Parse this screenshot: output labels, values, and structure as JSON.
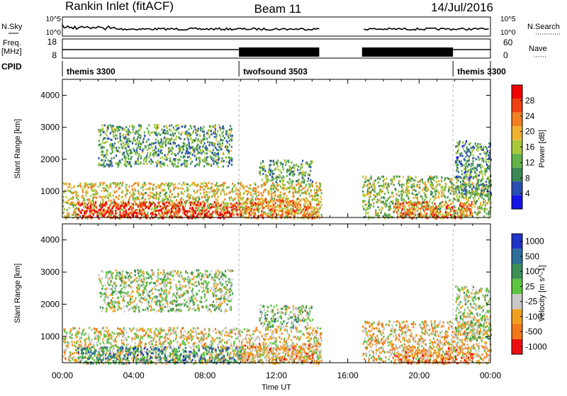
{
  "header": {
    "station": "Rankin Inlet (fitACF)",
    "beam": "Beam 11",
    "date": "14/Jul/2016"
  },
  "nsky_panel": {
    "left_label": "N.Sky",
    "right_label": "N.Search",
    "y_ticks": [
      "10^5",
      "10^0"
    ]
  },
  "freq_panel": {
    "left_label_line1": "Freq.",
    "left_label_line2": "[MHz]",
    "right_label": "Nave",
    "left_ticks": [
      "18",
      "8"
    ],
    "right_ticks": [
      "60",
      "0"
    ]
  },
  "cpid_panel": {
    "label": "CPID",
    "segments": [
      {
        "name": "themis 3300",
        "start_hour": 0,
        "end_hour": 9.9
      },
      {
        "name": "twofsound 3503",
        "start_hour": 9.9,
        "end_hour": 21.9
      },
      {
        "name": "themis 3300",
        "start_hour": 21.9,
        "end_hour": 24
      }
    ]
  },
  "colors": {
    "power": [
      "#1515e8",
      "#2b4fb0",
      "#3b8a55",
      "#62b347",
      "#a8c83a",
      "#f0b030",
      "#f08020",
      "#f04010",
      "#ee0000"
    ],
    "velocity": [
      "#2034c8",
      "#2c6e9a",
      "#3e9058",
      "#5cc440",
      "#c8c8c8",
      "#f0a020",
      "#f07818",
      "#ee1010"
    ]
  },
  "chart_data": [
    {
      "type": "heatmap",
      "name": "power",
      "ylabel": "Slant Range [km]",
      "xlabel": "",
      "xlim": [
        0,
        24
      ],
      "ylim": [
        180,
        4500
      ],
      "y_ticks": [
        1000,
        2000,
        3000,
        4000
      ],
      "colorbar": {
        "label": "Power [dB]",
        "range": [
          0,
          30
        ],
        "ticks": [
          "4",
          "8",
          "12",
          "16",
          "20",
          "24",
          "28"
        ]
      },
      "observed_regions": [
        {
          "t0": 0.0,
          "t1": 14.5,
          "r0": 180,
          "r1": 1300,
          "level": 0.55
        },
        {
          "t0": 0.8,
          "t1": 10.0,
          "r0": 180,
          "r1": 700,
          "level": 0.95
        },
        {
          "t0": 2.0,
          "t1": 9.5,
          "r0": 1800,
          "r1": 3100,
          "level": 0.35
        },
        {
          "t0": 10.0,
          "t1": 14.4,
          "r0": 180,
          "r1": 800,
          "level": 0.7
        },
        {
          "t0": 11.0,
          "t1": 14.0,
          "r0": 1300,
          "r1": 2000,
          "level": 0.35
        },
        {
          "t0": 16.8,
          "t1": 24.0,
          "r0": 180,
          "r1": 1500,
          "level": 0.45
        },
        {
          "t0": 18.5,
          "t1": 23.0,
          "r0": 180,
          "r1": 700,
          "level": 0.75
        },
        {
          "t0": 22.0,
          "t1": 24.0,
          "r0": 900,
          "r1": 2600,
          "level": 0.3
        }
      ]
    },
    {
      "type": "heatmap",
      "name": "velocity",
      "ylabel": "Slant Range [km]",
      "xlabel": "Time UT",
      "xlim": [
        0,
        24
      ],
      "ylim": [
        180,
        4500
      ],
      "x_ticks": [
        "00:00",
        "04:00",
        "08:00",
        "12:00",
        "16:00",
        "20:00",
        "00:00"
      ],
      "y_ticks": [
        1000,
        2000,
        3000,
        4000
      ],
      "colorbar": {
        "label": "Velocity [m s^-1]",
        "ticks": [
          "1000",
          "500",
          "100",
          "25",
          "-25",
          "-100",
          "-500",
          "-1000"
        ]
      },
      "observed_regions": [
        {
          "t0": 0.0,
          "t1": 14.5,
          "r0": 180,
          "r1": 1300,
          "level": 0.6
        },
        {
          "t0": 0.8,
          "t1": 10.0,
          "r0": 180,
          "r1": 700,
          "level": 0.3
        },
        {
          "t0": 2.0,
          "t1": 9.5,
          "r0": 1800,
          "r1": 3100,
          "level": 0.5
        },
        {
          "t0": 10.0,
          "t1": 14.4,
          "r0": 180,
          "r1": 800,
          "level": 0.7
        },
        {
          "t0": 11.0,
          "t1": 14.0,
          "r0": 1300,
          "r1": 2000,
          "level": 0.45
        },
        {
          "t0": 16.8,
          "t1": 24.0,
          "r0": 180,
          "r1": 1500,
          "level": 0.65
        },
        {
          "t0": 18.5,
          "t1": 23.0,
          "r0": 180,
          "r1": 700,
          "level": 0.75
        },
        {
          "t0": 22.0,
          "t1": 24.0,
          "r0": 900,
          "r1": 2600,
          "level": 0.5
        }
      ]
    }
  ]
}
